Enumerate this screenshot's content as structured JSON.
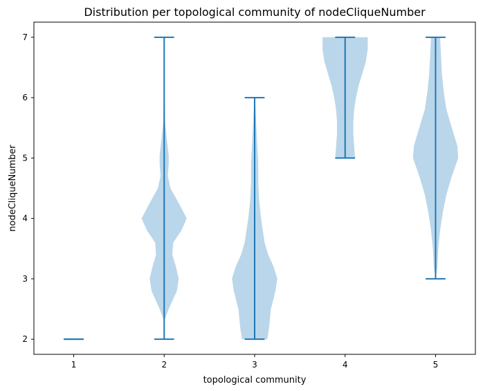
{
  "chart_data": {
    "type": "violin",
    "title": "Distribution per topological community of nodeCliqueNumber",
    "xlabel": "topological community",
    "ylabel": "nodeCliqueNumber",
    "categories": [
      "1",
      "2",
      "3",
      "4",
      "5"
    ],
    "yticks": [
      "2",
      "3",
      "4",
      "5",
      "6",
      "7"
    ],
    "xlim": [
      0.56,
      5.44
    ],
    "ylim": [
      1.75,
      7.25
    ],
    "violin_color": "#bad6ea",
    "line_color": "#1f77b4",
    "violins": [
      {
        "x": 1,
        "min": 2,
        "max": 2,
        "profile": []
      },
      {
        "x": 2,
        "min": 2,
        "max": 7,
        "profile": [
          [
            2.3,
            0.0
          ],
          [
            2.5,
            0.05
          ],
          [
            2.8,
            0.14
          ],
          [
            3.0,
            0.16
          ],
          [
            3.2,
            0.13
          ],
          [
            3.4,
            0.09
          ],
          [
            3.6,
            0.1
          ],
          [
            3.8,
            0.19
          ],
          [
            4.0,
            0.25
          ],
          [
            4.2,
            0.18
          ],
          [
            4.5,
            0.07
          ],
          [
            4.7,
            0.04
          ],
          [
            4.9,
            0.05
          ],
          [
            5.05,
            0.05
          ],
          [
            5.3,
            0.03
          ],
          [
            5.6,
            0.01
          ],
          [
            6.0,
            0.005
          ],
          [
            6.3,
            0.0
          ]
        ]
      },
      {
        "x": 3,
        "min": 2,
        "max": 6,
        "profile": [
          [
            2.0,
            0.14
          ],
          [
            2.2,
            0.16
          ],
          [
            2.5,
            0.18
          ],
          [
            2.8,
            0.23
          ],
          [
            3.0,
            0.25
          ],
          [
            3.2,
            0.21
          ],
          [
            3.4,
            0.15
          ],
          [
            3.6,
            0.11
          ],
          [
            3.8,
            0.09
          ],
          [
            4.0,
            0.07
          ],
          [
            4.3,
            0.05
          ],
          [
            4.6,
            0.04
          ],
          [
            4.9,
            0.04
          ],
          [
            5.2,
            0.03
          ],
          [
            5.5,
            0.02
          ],
          [
            5.8,
            0.01
          ],
          [
            6.0,
            0.005
          ]
        ]
      },
      {
        "x": 4,
        "min": 5,
        "max": 7,
        "profile": [
          [
            5.0,
            0.11
          ],
          [
            5.2,
            0.1
          ],
          [
            5.4,
            0.09
          ],
          [
            5.6,
            0.09
          ],
          [
            5.8,
            0.1
          ],
          [
            6.0,
            0.12
          ],
          [
            6.2,
            0.15
          ],
          [
            6.4,
            0.19
          ],
          [
            6.6,
            0.23
          ],
          [
            6.8,
            0.25
          ],
          [
            7.0,
            0.25
          ]
        ]
      },
      {
        "x": 5,
        "min": 3,
        "max": 7,
        "profile": [
          [
            3.0,
            0.0
          ],
          [
            3.2,
            0.02
          ],
          [
            3.5,
            0.03
          ],
          [
            3.8,
            0.05
          ],
          [
            4.1,
            0.08
          ],
          [
            4.4,
            0.12
          ],
          [
            4.7,
            0.18
          ],
          [
            5.0,
            0.25
          ],
          [
            5.2,
            0.24
          ],
          [
            5.5,
            0.18
          ],
          [
            5.8,
            0.12
          ],
          [
            6.1,
            0.09
          ],
          [
            6.4,
            0.07
          ],
          [
            6.7,
            0.06
          ],
          [
            7.0,
            0.05
          ]
        ]
      }
    ]
  }
}
